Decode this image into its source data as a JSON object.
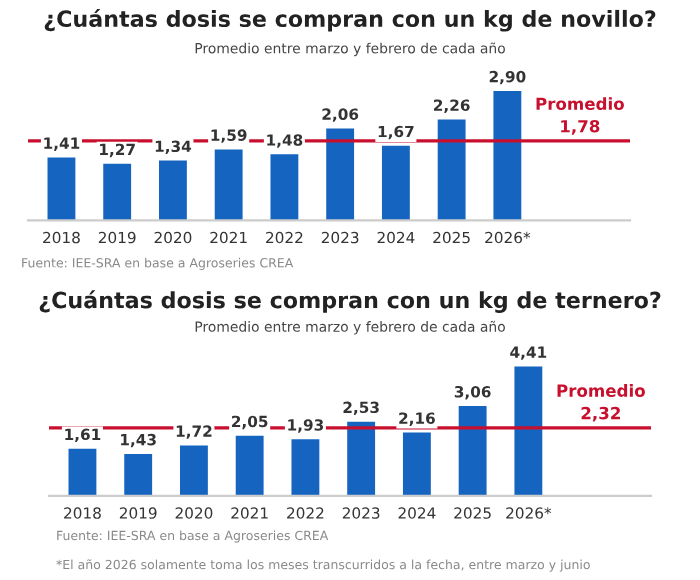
{
  "chart_data": [
    {
      "type": "bar",
      "title": "¿Cuántas dosis se compran con un kg de novillo?",
      "subtitle": "Promedio entre marzo y febrero de cada año",
      "categories": [
        "2018",
        "2019",
        "2020",
        "2021",
        "2022",
        "2023",
        "2024",
        "2025",
        "2026*"
      ],
      "values": [
        1.41,
        1.27,
        1.34,
        1.59,
        1.48,
        2.06,
        1.67,
        2.26,
        2.9
      ],
      "value_labels": [
        "1,41",
        "1,27",
        "1,34",
        "1,59",
        "1,48",
        "2,06",
        "1,67",
        "2,26",
        "2,90"
      ],
      "color": "#1565c0",
      "ref_lines": [
        {
          "axis": "y",
          "value": 1.78,
          "label": "Promedio\n1,78",
          "color": "#c8102e"
        }
      ],
      "annotations": [
        "Fuente: IEE-SRA en base a Agroseries CREA"
      ]
    },
    {
      "type": "bar",
      "title": "¿Cuántas dosis se compran con un kg de ternero?",
      "subtitle": "Promedio entre marzo y febrero de cada año",
      "categories": [
        "2018",
        "2019",
        "2020",
        "2021",
        "2022",
        "2023",
        "2024",
        "2025",
        "2026*"
      ],
      "values": [
        1.61,
        1.43,
        1.72,
        2.05,
        1.93,
        2.53,
        2.16,
        3.06,
        4.41
      ],
      "value_labels": [
        "1,61",
        "1,43",
        "1,72",
        "2,05",
        "1,93",
        "2,53",
        "2,16",
        "3,06",
        "4,41"
      ],
      "color": "#1565c0",
      "ref_lines": [
        {
          "axis": "y",
          "value": 2.32,
          "label": "Promedio\n2,32",
          "color": "#c8102e"
        }
      ],
      "annotations": [
        "Fuente: IEE-SRA en base a Agroseries CREA",
        "*El año 2026 solamente toma los meses transcurridos a la fecha, entre marzo y junio"
      ]
    }
  ]
}
